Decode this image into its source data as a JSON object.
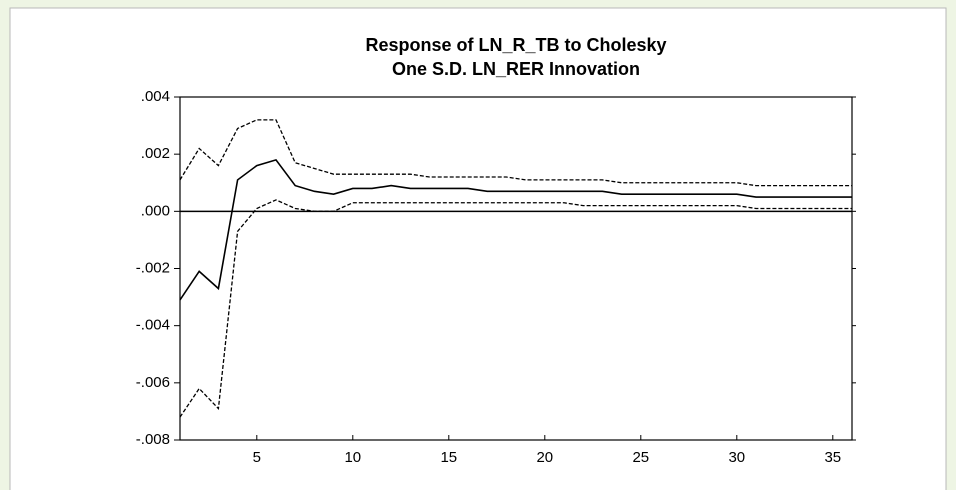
{
  "chart_data": {
    "type": "line",
    "title": [
      "Response of LN_R_TB to Cholesky",
      "One S.D. LN_RER Innovation"
    ],
    "x": [
      1,
      2,
      3,
      4,
      5,
      6,
      7,
      8,
      9,
      10,
      11,
      12,
      13,
      14,
      15,
      16,
      17,
      18,
      19,
      20,
      21,
      22,
      23,
      24,
      25,
      26,
      27,
      28,
      29,
      30,
      31,
      32,
      33,
      34,
      35,
      36
    ],
    "series": [
      {
        "color": "#000000",
        "dash": true,
        "values": [
          0.0011,
          0.0022,
          0.0016,
          0.0029,
          0.0032,
          0.0032,
          0.0017,
          0.0015,
          0.0013,
          0.0013,
          0.0013,
          0.0013,
          0.0013,
          0.0012,
          0.0012,
          0.0012,
          0.0012,
          0.0012,
          0.0011,
          0.0011,
          0.0011,
          0.0011,
          0.0011,
          0.001,
          0.001,
          0.001,
          0.001,
          0.001,
          0.001,
          0.001,
          0.0009,
          0.0009,
          0.0009,
          0.0009,
          0.0009,
          0.0009
        ]
      },
      {
        "color": "#000000",
        "dash": false,
        "values": [
          -0.0031,
          -0.0021,
          -0.0027,
          0.0011,
          0.0016,
          0.0018,
          0.0009,
          0.0007,
          0.0006,
          0.0008,
          0.0008,
          0.0009,
          0.0008,
          0.0008,
          0.0008,
          0.0008,
          0.0007,
          0.0007,
          0.0007,
          0.0007,
          0.0007,
          0.0007,
          0.0007,
          0.0006,
          0.0006,
          0.0006,
          0.0006,
          0.0006,
          0.0006,
          0.0006,
          0.0005,
          0.0005,
          0.0005,
          0.0005,
          0.0005,
          0.0005
        ]
      },
      {
        "color": "#000000",
        "dash": true,
        "values": [
          -0.0072,
          -0.0062,
          -0.0069,
          -0.0007,
          0.0001,
          0.0004,
          0.0001,
          0.0,
          0.0,
          0.0003,
          0.0003,
          0.0003,
          0.0003,
          0.0003,
          0.0003,
          0.0003,
          0.0003,
          0.0003,
          0.0003,
          0.0003,
          0.0003,
          0.0002,
          0.0002,
          0.0002,
          0.0002,
          0.0002,
          0.0002,
          0.0002,
          0.0002,
          0.0002,
          0.0001,
          0.0001,
          0.0001,
          0.0001,
          0.0001,
          0.0001
        ]
      }
    ],
    "xlim": [
      1,
      36
    ],
    "xticks": [
      5,
      10,
      15,
      20,
      25,
      30,
      35
    ],
    "ylim": [
      -0.008,
      0.004
    ],
    "yticks": [
      {
        "value": 0.004,
        "label": ".004"
      },
      {
        "value": 0.002,
        "label": ".002"
      },
      {
        "value": 0,
        "label": ".000"
      },
      {
        "value": -0.002,
        "label": "-.002"
      },
      {
        "value": -0.004,
        "label": "-.004"
      },
      {
        "value": -0.006,
        "label": "-.006"
      },
      {
        "value": -0.008,
        "label": "-.008"
      }
    ],
    "zero_line": true
  }
}
